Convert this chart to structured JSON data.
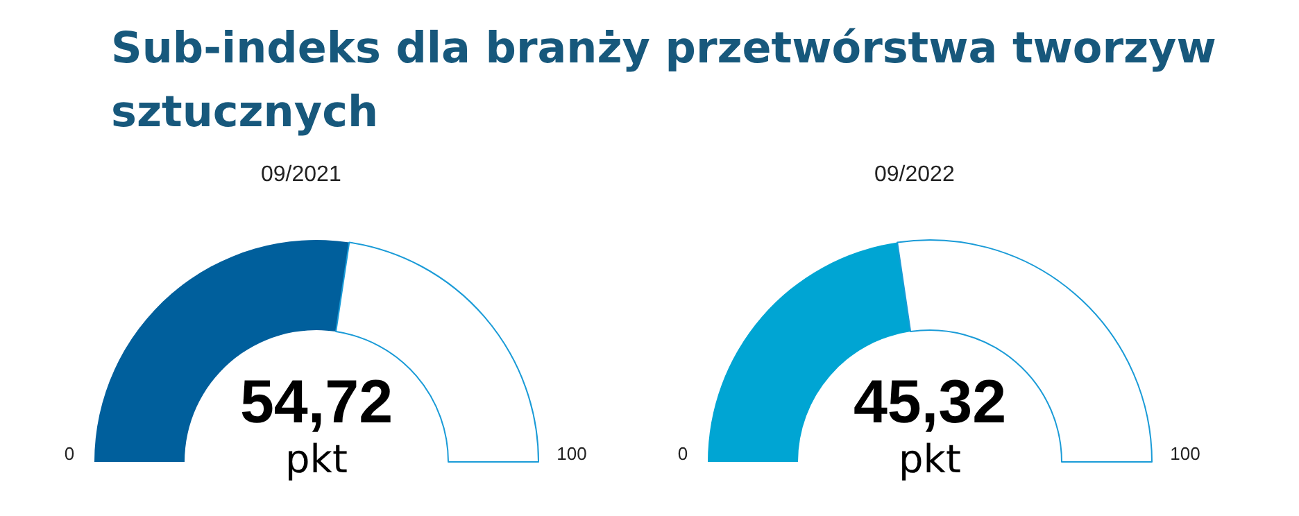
{
  "chart_data": [
    {
      "type": "donut",
      "title": "Sub-indeks dla branży przetwórstwa tworzyw sztucznych",
      "subtitle": "09/2021",
      "categories": [
        null,
        null
      ],
      "values": [
        54.72,
        45.28
      ],
      "colors": [
        "#005f9c",
        "#ffffff"
      ],
      "value_labels": [
        "54,72",
        null
      ],
      "annotations": [
        "pkt",
        "0",
        "100"
      ]
    },
    {
      "type": "donut",
      "subtitle": "09/2022",
      "categories": [
        null,
        null
      ],
      "values": [
        45.32,
        54.68
      ],
      "colors": [
        "#00a5d3",
        "#ffffff"
      ],
      "value_labels": [
        "45,32",
        null
      ],
      "annotations": [
        "pkt",
        "0",
        "100"
      ]
    }
  ]
}
